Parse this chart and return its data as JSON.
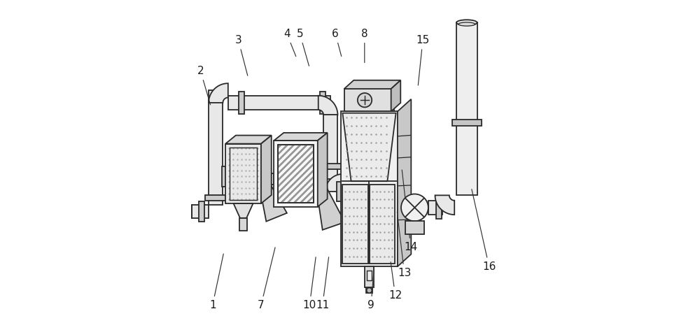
{
  "bg_color": "#ffffff",
  "line_color": "#2a2a2a",
  "pipe_r": 0.022,
  "pipe_fill": "#e8e8e8",
  "box_fill": "#eeeeee",
  "side_fill": "#d0d0d0",
  "top_fill": "#d8d8d8",
  "dot_color": "#aaaaaa",
  "hatch_color": "#999999",
  "labels": {
    "1": [
      0.075,
      0.055,
      0.11,
      0.22
    ],
    "2": [
      0.038,
      0.78,
      0.07,
      0.67
    ],
    "3": [
      0.155,
      0.875,
      0.185,
      0.76
    ],
    "4": [
      0.305,
      0.895,
      0.335,
      0.82
    ],
    "5": [
      0.345,
      0.895,
      0.375,
      0.79
    ],
    "6": [
      0.455,
      0.895,
      0.475,
      0.82
    ],
    "7": [
      0.225,
      0.055,
      0.27,
      0.24
    ],
    "8": [
      0.545,
      0.895,
      0.545,
      0.8
    ],
    "9": [
      0.565,
      0.055,
      0.575,
      0.18
    ],
    "10": [
      0.375,
      0.055,
      0.395,
      0.21
    ],
    "11": [
      0.415,
      0.055,
      0.435,
      0.21
    ],
    "12": [
      0.64,
      0.085,
      0.625,
      0.195
    ],
    "13": [
      0.668,
      0.155,
      0.645,
      0.35
    ],
    "14": [
      0.688,
      0.235,
      0.66,
      0.48
    ],
    "15": [
      0.725,
      0.875,
      0.71,
      0.73
    ],
    "16": [
      0.93,
      0.175,
      0.875,
      0.42
    ]
  }
}
